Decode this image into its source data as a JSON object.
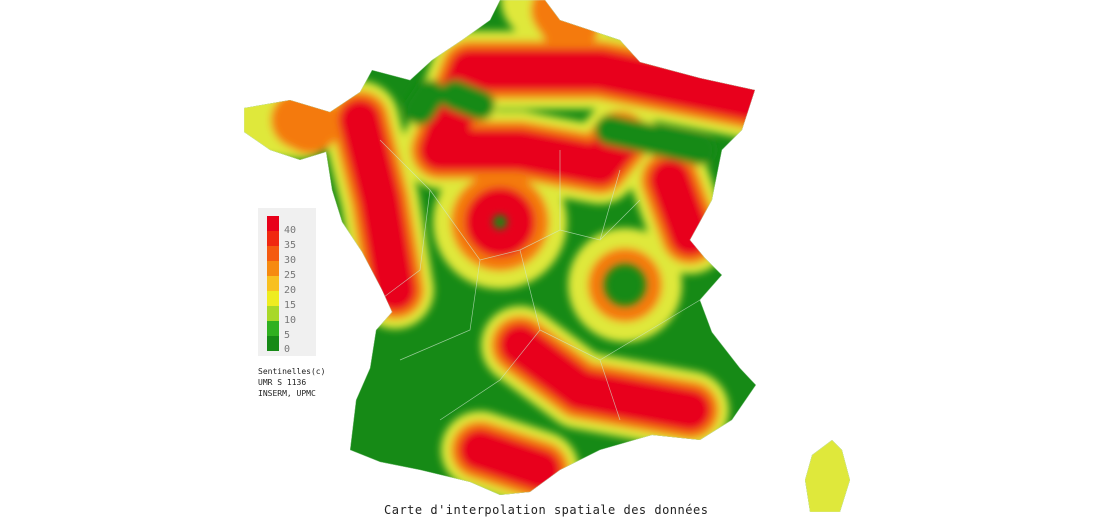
{
  "legend": {
    "ticks": [
      "40",
      "35",
      "30",
      "25",
      "20",
      "15",
      "10",
      "5",
      "0"
    ],
    "colors": [
      "#e8001a",
      "#f02810",
      "#f45a10",
      "#f68a10",
      "#f8c020",
      "#eeec20",
      "#a8d828",
      "#30b020",
      "#168a16"
    ]
  },
  "credit": {
    "line1": "Sentinelles(c)",
    "line2": "UMR S 1136",
    "line3": "INSERM, UPMC"
  },
  "caption": "Carte d'interpolation spatiale des données",
  "colors": {
    "low": "#168a16",
    "mid": "#eeec20",
    "high": "#e8001a",
    "border": "#cfe8cf"
  }
}
